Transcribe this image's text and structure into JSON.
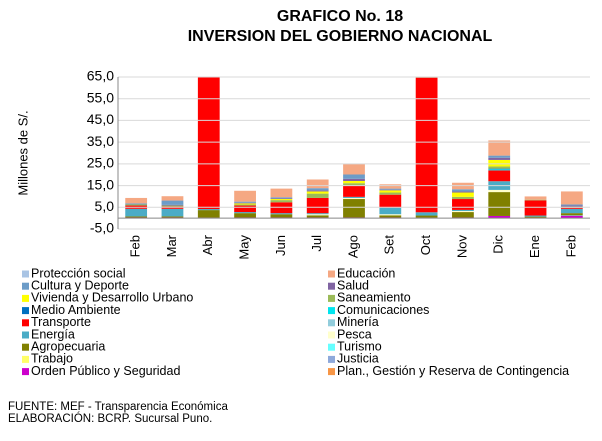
{
  "chart_data": {
    "type": "bar",
    "stacked": true,
    "title": "GRAFICO No. 18",
    "subtitle": "INVERSION DEL GOBIERNO NACIONAL",
    "y_label": "Millones de S/.",
    "categories": [
      "Feb",
      "Mar",
      "Abr",
      "May",
      "Jun",
      "Jul",
      "Ago",
      "Set",
      "Oct",
      "Nov",
      "Dic",
      "Ene",
      "Feb"
    ],
    "ylim": [
      -5,
      65
    ],
    "yticks": [
      {
        "value": -5,
        "label": "-5,0"
      },
      {
        "value": 5,
        "label": "5,0"
      },
      {
        "value": 15,
        "label": "15,0"
      },
      {
        "value": 25,
        "label": "25,0"
      },
      {
        "value": 35,
        "label": "35,0"
      },
      {
        "value": 45,
        "label": "45,0"
      },
      {
        "value": 55,
        "label": "55,0"
      },
      {
        "value": 65,
        "label": "65,0"
      }
    ],
    "grid": true,
    "series": [
      {
        "name": "Protección social",
        "color": "#a9c4e4",
        "values": [
          0,
          0,
          0,
          0,
          0,
          0,
          0,
          0,
          0,
          0,
          0,
          0,
          0
        ]
      },
      {
        "name": "Educación",
        "color": "#f5a883",
        "values": [
          2.5,
          2,
          0,
          5,
          4,
          4,
          5,
          2,
          0,
          3,
          7,
          1.5,
          6
        ]
      },
      {
        "name": "Cultura y Deporte",
        "color": "#6c9cc8",
        "values": [
          0.5,
          2,
          0,
          0.5,
          0.5,
          1,
          2,
          0.5,
          0,
          1,
          1,
          0,
          0.5
        ]
      },
      {
        "name": "Salud",
        "color": "#8064a2",
        "values": [
          0,
          0.3,
          0,
          0.3,
          0.3,
          0.5,
          1,
          0.3,
          0,
          0.5,
          1,
          0,
          0.5
        ]
      },
      {
        "name": "Vivienda y Desarrollo Urbano",
        "color": "#ffff00",
        "values": [
          0,
          0,
          0,
          0.5,
          0.5,
          1,
          1,
          1,
          0,
          2,
          3,
          0,
          0
        ]
      },
      {
        "name": "Saneamiento",
        "color": "#9bbb59",
        "values": [
          0.5,
          0.5,
          0.5,
          0.5,
          1,
          2,
          1,
          1,
          0.5,
          1,
          1,
          0.3,
          0.5
        ]
      },
      {
        "name": "Medio Ambiente",
        "color": "#0070c0",
        "values": [
          0,
          0,
          0,
          0,
          0,
          0,
          0,
          0,
          0,
          0,
          0.3,
          0,
          0
        ]
      },
      {
        "name": "Comunicaciones",
        "color": "#00e5ee",
        "values": [
          0,
          0,
          0,
          0,
          0,
          0,
          0.3,
          0,
          0,
          0,
          0.5,
          0,
          0
        ]
      },
      {
        "name": "Transporte",
        "color": "#ff0000",
        "values": [
          1.5,
          1,
          62,
          3,
          5,
          7,
          5,
          6,
          62,
          5,
          5,
          7,
          0.5
        ]
      },
      {
        "name": "Minería",
        "color": "#92cddc",
        "values": [
          0,
          0,
          0,
          0,
          0,
          0,
          0,
          0,
          0,
          0,
          0,
          0,
          0
        ]
      },
      {
        "name": "Energía",
        "color": "#4bacc6",
        "values": [
          3.5,
          3.5,
          0.5,
          0.5,
          0.5,
          0.5,
          0.5,
          3,
          1.5,
          0.5,
          4,
          0.5,
          2
        ]
      },
      {
        "name": "Pesca",
        "color": "#ffffcc",
        "values": [
          0,
          0,
          0,
          0,
          0,
          0.5,
          0.5,
          0.5,
          0,
          0.5,
          1,
          0,
          0
        ]
      },
      {
        "name": "Agropecuaria",
        "color": "#808000",
        "values": [
          0.5,
          0.5,
          3.5,
          2,
          1.5,
          1,
          8.5,
          1,
          1,
          2.5,
          11,
          0.5,
          1
        ]
      },
      {
        "name": "Turismo",
        "color": "#66ffff",
        "values": [
          0,
          0,
          0,
          0,
          0,
          0,
          0,
          0,
          0,
          0,
          0,
          0,
          0
        ]
      },
      {
        "name": "Trabajo",
        "color": "#ffff66",
        "values": [
          0,
          0,
          0,
          0,
          0,
          0,
          0,
          0,
          0,
          0,
          0,
          0,
          0
        ]
      },
      {
        "name": "Justicia",
        "color": "#8ea9db",
        "values": [
          0,
          0,
          0,
          0,
          0,
          0,
          0,
          0,
          0,
          0,
          0,
          0,
          0.3
        ]
      },
      {
        "name": "Orden Público y Seguridad",
        "color": "#cc00cc",
        "values": [
          0.3,
          0.3,
          0.2,
          0.3,
          0.3,
          0.3,
          0.3,
          0.3,
          0.2,
          0.3,
          1,
          0.2,
          1
        ]
      },
      {
        "name": "Plan., Gestión y Reserva de Contingencia",
        "color": "#f79646",
        "values": [
          0,
          0,
          0,
          0,
          0,
          0,
          0,
          0,
          0,
          0,
          0,
          0,
          0
        ]
      }
    ],
    "notes": [
      "FUENTE: MEF - Transparencia Económica",
      "ELABORACIÓN: BCRP. Sucursal Puno."
    ]
  }
}
